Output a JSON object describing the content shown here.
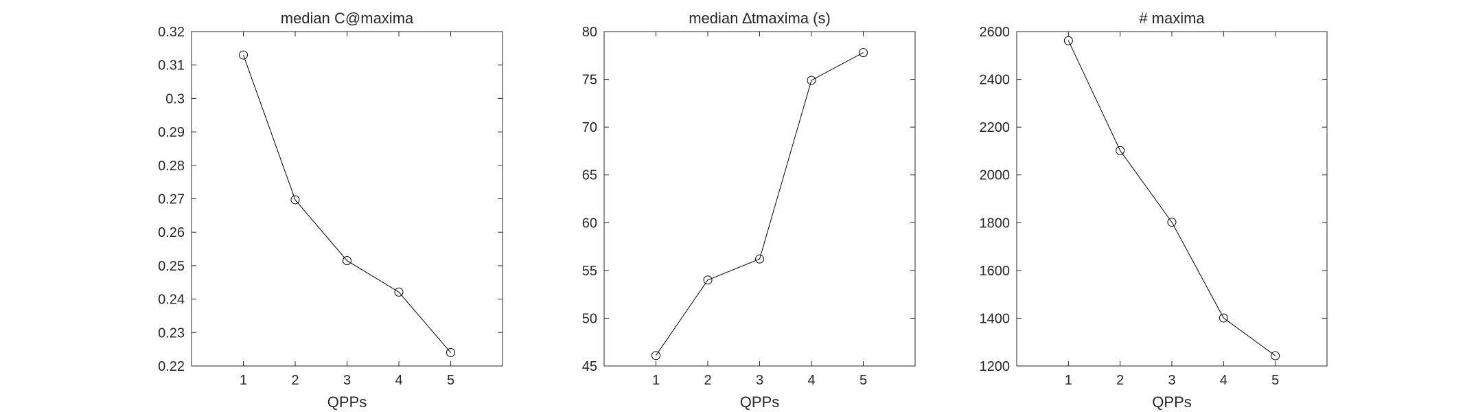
{
  "chart_data": [
    {
      "type": "line",
      "title": "median C@maxima",
      "xlabel": "QPPs",
      "ylabel": "",
      "x": [
        1,
        2,
        3,
        4,
        5
      ],
      "xlim": [
        0,
        6
      ],
      "xticks": [
        "1",
        "2",
        "3",
        "4",
        "5"
      ],
      "ylim": [
        0.22,
        0.32
      ],
      "yticks": [
        "0.22",
        "0.23",
        "0.24",
        "0.25",
        "0.26",
        "0.27",
        "0.28",
        "0.29",
        "0.3",
        "0.31",
        "0.32"
      ],
      "series": [
        {
          "values": [
            0.313,
            0.2697,
            0.2515,
            0.2421,
            0.224
          ]
        }
      ],
      "marker": "circle",
      "line_color": "#000000",
      "grid": false,
      "legend": "none"
    },
    {
      "type": "line",
      "title": "median ∆tmaxima (s)",
      "xlabel": "QPPs",
      "ylabel": "",
      "x": [
        1,
        2,
        3,
        4,
        5
      ],
      "xlim": [
        0,
        6
      ],
      "xticks": [
        "1",
        "2",
        "3",
        "4",
        "5"
      ],
      "ylim": [
        45,
        80
      ],
      "yticks": [
        "45",
        "50",
        "55",
        "60",
        "65",
        "70",
        "75",
        "80"
      ],
      "series": [
        {
          "values": [
            46.1,
            54.0,
            56.2,
            74.9,
            77.8
          ]
        }
      ],
      "marker": "circle",
      "line_color": "#000000",
      "grid": false,
      "legend": "none"
    },
    {
      "type": "line",
      "title": "# maxima",
      "xlabel": "QPPs",
      "ylabel": "",
      "x": [
        1,
        2,
        3,
        4,
        5
      ],
      "xlim": [
        0,
        6
      ],
      "xticks": [
        "1",
        "2",
        "3",
        "4",
        "5"
      ],
      "ylim": [
        1200,
        2600
      ],
      "yticks": [
        "1200",
        "1400",
        "1600",
        "1800",
        "2000",
        "2200",
        "2400",
        "2600"
      ],
      "series": [
        {
          "values": [
            2562,
            2102,
            1802,
            1401,
            1243
          ]
        }
      ],
      "marker": "circle",
      "line_color": "#000000",
      "grid": false,
      "legend": "none"
    }
  ]
}
